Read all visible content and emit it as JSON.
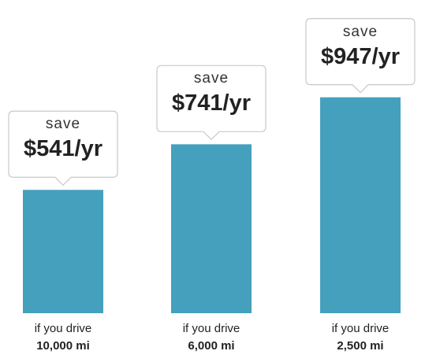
{
  "chart_data": {
    "type": "bar",
    "categories": [
      "10,000 mi",
      "6,000 mi",
      "2,500 mi"
    ],
    "values": [
      541,
      741,
      947
    ],
    "category_prefix": "if you drive",
    "data_label_prefix": "save",
    "data_labels": [
      "$541/yr",
      "$741/yr",
      "$947/yr"
    ],
    "bar_color": "#45a0bd",
    "grid": false,
    "legend": "none",
    "title": "",
    "xlabel": "",
    "ylabel": ""
  }
}
